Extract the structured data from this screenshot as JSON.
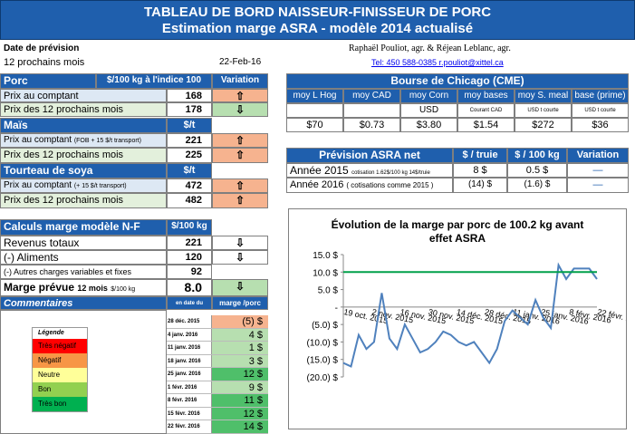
{
  "title1": "TABLEAU DE BORD NAISSEUR-FINISSEUR DE PORC",
  "title2": "Estimation marge ASRA - modèle 2014 actualisé",
  "date_label": "Date de prévision",
  "horizon": "12 prochains mois",
  "date": "22-Feb-16",
  "authors": "Raphaël Pouliot, agr.   &   Réjean Leblanc, agr.",
  "contact": "Tel:  450 588-0385   r.pouliot@xittel.ca",
  "porc": {
    "header": "Porc",
    "unit": "$/100 kg à l'indice 100",
    "var": "Variation",
    "rows": [
      {
        "label": "Prix au comptant",
        "value": "168",
        "dir": "⇧"
      },
      {
        "label": "Prix des 12 prochains mois",
        "value": "178",
        "dir": "⇩"
      }
    ]
  },
  "mais": {
    "header": "Maïs",
    "unit": "$/t",
    "rows": [
      {
        "label": "Prix au comptant",
        "note": "(FOB + 15 $/t transport)",
        "value": "221",
        "dir": "⇧"
      },
      {
        "label": "Prix des 12 prochains mois",
        "value": "225",
        "dir": "⇧"
      }
    ]
  },
  "soya": {
    "header": "Tourteau de soya",
    "unit": "$/t",
    "rows": [
      {
        "label": "Prix au comptant",
        "note": "(+ 15 $/t transport)",
        "value": "472",
        "dir": "⇧"
      },
      {
        "label": "Prix des 12 prochains mois",
        "value": "482",
        "dir": "⇧"
      }
    ]
  },
  "calc": {
    "header": "Calculs marge  modèle N-F",
    "unit": "$/100 kg",
    "rows": [
      {
        "label": "Revenus totaux",
        "value": "221",
        "dir": "⇩"
      },
      {
        "label": "(-) Aliments",
        "value": "120",
        "dir": "⇩"
      },
      {
        "label": "(-) Autres charges variables et fixes",
        "value": "92",
        "dir": ""
      }
    ],
    "marge_label": "Marge prévue",
    "marge_sub": "12 mois",
    "marge_unit": "$/100 kg",
    "marge_value": "8.0",
    "marge_dir": "⇩"
  },
  "commentaires": "Commentaires",
  "legend": {
    "title": "Légende",
    "items": [
      {
        "label": "Très négatif",
        "color": "#ff0000"
      },
      {
        "label": "Négatif",
        "color": "#f79646"
      },
      {
        "label": "Neutre",
        "color": "#ffff99"
      },
      {
        "label": "Bon",
        "color": "#92d050"
      },
      {
        "label": "Très bon",
        "color": "#00b050"
      }
    ]
  },
  "hist": {
    "h1": "en date du",
    "h2": "marge /porc",
    "rows": [
      {
        "date": "28 déc. 2015",
        "value": "(5) $",
        "color": "#f6b38f"
      },
      {
        "date": "4 janv. 2016",
        "value": "4  $",
        "color": "#b7dfb0"
      },
      {
        "date": "11 janv. 2016",
        "value": "1  $",
        "color": "#b7dfb0"
      },
      {
        "date": "18 janv. 2016",
        "value": "3  $",
        "color": "#b7dfb0"
      },
      {
        "date": "25 janv. 2016",
        "value": "12  $",
        "color": "#4fbf6a"
      },
      {
        "date": "1 févr. 2016",
        "value": "9  $",
        "color": "#b7dfb0"
      },
      {
        "date": "8 févr. 2016",
        "value": "11  $",
        "color": "#4fbf6a"
      },
      {
        "date": "15 févr. 2016",
        "value": "12  $",
        "color": "#4fbf6a"
      },
      {
        "date": "22 févr. 2016",
        "value": "14  $",
        "color": "#4fbf6a"
      }
    ]
  },
  "cme": {
    "header": "Bourse de Chicago (CME)",
    "cols": [
      "moy L Hog",
      "moy CAD",
      "moy Corn",
      "moy bases",
      "moy S. meal",
      "base (prime)"
    ],
    "units": [
      "",
      "",
      "USD",
      "Courant CAD",
      "USD t courte",
      "USD t courte"
    ],
    "values": [
      "$70",
      "$0.73",
      "$3.80",
      "$1.54",
      "$272",
      "$36"
    ]
  },
  "asra": {
    "header": "Prévision ASRA net",
    "c1": "$ / truie",
    "c2": "$ / 100 kg",
    "c3": "Variation",
    "rows": [
      {
        "label": "Année 2015",
        "note": "cotisation 1.62$/100 kg 14$/truie",
        "v1": "8  $",
        "v2": "0.5  $"
      },
      {
        "label": "Année 2016",
        "note": "( cotisations comme 2015 )",
        "v1": "(14) $",
        "v2": "(1.6) $"
      }
    ]
  },
  "chart_data": {
    "type": "line",
    "title": "Évolution de la marge par porc de 100.2 kg avant effet ASRA",
    "ylim": [
      -20,
      15
    ],
    "yticks": [
      "(20.0) $",
      "(15.0) $",
      "(10.0) $",
      "(5.0) $",
      "-",
      "5.0 $",
      "10.0 $",
      "15.0 $"
    ],
    "xticks": [
      "19 oct. 2015",
      "2 nov. 2015",
      "16 nov. 2015",
      "30 nov. 2015",
      "14 déc. 2015",
      "28 déc. 2015",
      "11 janv. 2016",
      "25 janv. 2016",
      "8 févr. 2016",
      "22 févr. 2016"
    ],
    "series": [
      {
        "color": "#4f81bd",
        "values": [
          -16,
          -17,
          -8,
          -12,
          -10,
          4,
          -9,
          -12,
          -5,
          -9,
          -13,
          -12,
          -10,
          -7,
          -8,
          -10,
          -11,
          -10,
          -13,
          -16,
          -12,
          -4,
          -1,
          -3,
          -5,
          2,
          -3,
          -6,
          12,
          8,
          11,
          11,
          11,
          8
        ]
      },
      {
        "color": "#00a04a",
        "values": [
          10,
          10,
          10,
          10,
          10,
          10,
          10,
          10,
          10,
          10,
          10,
          10,
          10,
          10,
          10,
          10,
          10,
          10,
          10,
          10,
          10,
          10,
          10,
          10,
          10,
          10,
          10,
          10,
          10,
          10,
          10,
          10,
          10,
          10
        ]
      }
    ]
  }
}
